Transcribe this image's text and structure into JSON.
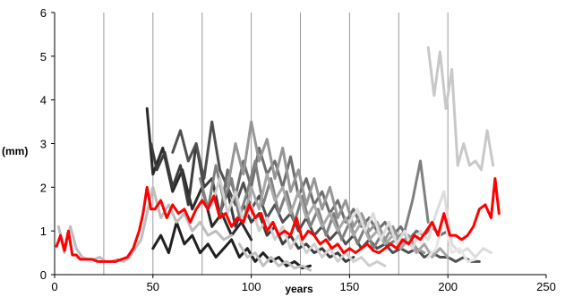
{
  "chart_data": {
    "type": "line",
    "xlabel": "years",
    "ylabel": "(mm)",
    "xlim": [
      0,
      250
    ],
    "ylim": [
      0,
      6
    ],
    "xticks": [
      0,
      50,
      100,
      150,
      200,
      250
    ],
    "yticks": [
      0,
      1,
      2,
      3,
      4,
      5,
      6
    ],
    "vertical_gridlines_x": [
      25,
      50,
      75,
      100,
      125,
      150,
      175,
      200
    ],
    "horizontal_grid": false,
    "series": [
      {
        "color": "#2a2a2a",
        "x": [
          47,
          50,
          55,
          60,
          65,
          70,
          75,
          80,
          85,
          90,
          95,
          100
        ],
        "y": [
          3.8,
          2.3,
          2.9,
          1.9,
          2.4,
          1.5,
          2.0,
          1.1,
          1.4,
          0.9,
          1.2,
          0.8
        ]
      },
      {
        "color": "#3c3c3c",
        "x": [
          49,
          52,
          56,
          60,
          64,
          68,
          72,
          76,
          80,
          84,
          88,
          92,
          96,
          100,
          104,
          108,
          112,
          116,
          120,
          124,
          128,
          132,
          136,
          140,
          144,
          148,
          152
        ],
        "y": [
          3.0,
          2.4,
          2.8,
          2.0,
          2.5,
          1.6,
          3.0,
          2.0,
          2.2,
          1.4,
          1.9,
          1.1,
          1.6,
          1.2,
          1.4,
          0.9,
          1.1,
          0.7,
          0.9,
          0.6,
          0.7,
          0.5,
          0.6,
          0.4,
          0.5,
          0.3,
          0.4
        ]
      },
      {
        "color": "#505050",
        "x": [
          60,
          64,
          68,
          72,
          76,
          80,
          84,
          88,
          92,
          96,
          100,
          104,
          108,
          112,
          116,
          120,
          124,
          128,
          132,
          136,
          140,
          144,
          148,
          152,
          156,
          160,
          164,
          168,
          172,
          176,
          180,
          184,
          188,
          192,
          196,
          200,
          204,
          208,
          212,
          216
        ],
        "y": [
          2.8,
          3.3,
          2.6,
          3.0,
          2.2,
          3.5,
          2.4,
          2.0,
          1.6,
          2.1,
          1.5,
          1.8,
          1.3,
          1.6,
          1.2,
          1.4,
          1.0,
          1.3,
          0.9,
          1.1,
          0.8,
          1.0,
          0.7,
          0.9,
          0.6,
          0.8,
          0.6,
          0.7,
          0.5,
          0.6,
          0.5,
          0.6,
          0.4,
          0.5,
          0.4,
          0.4,
          0.3,
          0.4,
          0.3,
          0.3
        ]
      },
      {
        "color": "#202020",
        "x": [
          50,
          54,
          58,
          62,
          66,
          70,
          74,
          78,
          82,
          86,
          90,
          94,
          98,
          102,
          106,
          110,
          114,
          118,
          122,
          126,
          130
        ],
        "y": [
          0.6,
          0.9,
          0.5,
          1.2,
          0.7,
          0.9,
          0.5,
          0.7,
          0.4,
          0.6,
          0.8,
          0.4,
          0.6,
          0.3,
          0.5,
          0.3,
          0.4,
          0.2,
          0.3,
          0.15,
          0.2
        ]
      },
      {
        "color": "#6e6e6e",
        "x": [
          84,
          88,
          92,
          96,
          100,
          104,
          108,
          112,
          116,
          120,
          124,
          128,
          132,
          136,
          140,
          144,
          148,
          152,
          156,
          160,
          164,
          168,
          172,
          176,
          180,
          184,
          188,
          192,
          196,
          200
        ],
        "y": [
          1.3,
          2.4,
          1.8,
          2.6,
          2.0,
          2.9,
          2.3,
          2.6,
          2.0,
          2.7,
          1.8,
          2.2,
          1.6,
          1.9,
          1.4,
          1.7,
          1.2,
          1.5,
          1.1,
          1.3,
          1.0,
          1.2,
          0.9,
          1.1,
          0.8,
          1.0,
          0.9,
          1.1,
          0.9,
          1.0
        ]
      },
      {
        "color": "#808080",
        "x": [
          74,
          78,
          82,
          86,
          90,
          94,
          98,
          102,
          106,
          110,
          114,
          118,
          122,
          126,
          130,
          134,
          138,
          142,
          146,
          150,
          154,
          158,
          162,
          166,
          170,
          174,
          178,
          182,
          186,
          190
        ],
        "y": [
          2.2,
          1.5,
          2.5,
          1.7,
          2.2,
          1.3,
          1.9,
          2.6,
          1.6,
          2.2,
          1.4,
          1.9,
          1.2,
          1.8,
          1.1,
          1.5,
          0.9,
          1.4,
          0.8,
          1.2,
          0.7,
          1.1,
          0.6,
          0.9,
          0.7,
          0.8,
          1.0,
          1.7,
          2.6,
          1.2
        ]
      },
      {
        "color": "#969696",
        "x": [
          88,
          92,
          96,
          100,
          104,
          108,
          112,
          116,
          120,
          124,
          128,
          132,
          136,
          140,
          144,
          148,
          152,
          156,
          160,
          164,
          168,
          172,
          176,
          180,
          184,
          188
        ],
        "y": [
          2.0,
          3.0,
          2.3,
          3.5,
          2.6,
          3.1,
          2.2,
          2.9,
          1.9,
          2.4,
          1.6,
          2.2,
          1.5,
          2.0,
          1.3,
          1.7,
          1.1,
          1.4,
          1.0,
          1.2,
          0.8,
          1.1,
          0.7,
          0.9,
          0.6,
          0.5
        ]
      },
      {
        "color": "#a8a8a8",
        "x": [
          96,
          100,
          104,
          108,
          112,
          116,
          120,
          124,
          128,
          132,
          136,
          140,
          144,
          148,
          152,
          156,
          160,
          164,
          168,
          172,
          176,
          180,
          184,
          188,
          192,
          196,
          200
        ],
        "y": [
          1.2,
          2.0,
          1.5,
          2.3,
          1.7,
          2.0,
          1.4,
          1.9,
          1.3,
          1.6,
          1.1,
          1.4,
          1.0,
          1.3,
          0.9,
          1.2,
          0.8,
          1.0,
          0.7,
          0.9,
          0.6,
          0.8,
          0.5,
          0.7,
          0.4,
          0.6,
          0.4
        ]
      },
      {
        "color": "#bdbdbd",
        "x": [
          2,
          5,
          8,
          11,
          14,
          17,
          20,
          23,
          26,
          29,
          32,
          35,
          38,
          41,
          44,
          47,
          50,
          54,
          58,
          62,
          66,
          70,
          74,
          78,
          82,
          86,
          90
        ],
        "y": [
          1.1,
          0.5,
          1.1,
          0.6,
          0.4,
          0.35,
          0.35,
          0.4,
          0.3,
          0.3,
          0.35,
          0.3,
          0.4,
          0.6,
          0.8,
          1.4,
          2.0,
          1.3,
          1.6,
          1.2,
          1.4,
          1.0,
          1.2,
          0.9,
          1.0,
          0.8,
          0.9
        ]
      },
      {
        "color": "#c8c8c8",
        "x": [
          190,
          193,
          196,
          199,
          202,
          205,
          208,
          211,
          214,
          217,
          220,
          223
        ],
        "y": [
          5.2,
          4.1,
          5.1,
          3.8,
          4.7,
          2.5,
          3.0,
          2.5,
          2.6,
          2.4,
          3.3,
          2.5
        ]
      },
      {
        "color": "#cfcfcf",
        "x": [
          80,
          84,
          88,
          92,
          96,
          100,
          104,
          108,
          112,
          116,
          120,
          124,
          128,
          132,
          136,
          140,
          144,
          148,
          152,
          156,
          160,
          164,
          168
        ],
        "y": [
          1.6,
          2.2,
          1.4,
          1.9,
          1.2,
          1.6,
          1.0,
          1.3,
          0.8,
          1.1,
          0.6,
          0.9,
          0.5,
          0.7,
          0.4,
          0.6,
          0.3,
          0.5,
          0.3,
          0.4,
          0.2,
          0.3,
          0.2
        ]
      },
      {
        "color": "#dcdcdc",
        "x": [
          150,
          154,
          158,
          162,
          166,
          170,
          174,
          178,
          182,
          186,
          190,
          194,
          198,
          202,
          206,
          210,
          214,
          218,
          222
        ],
        "y": [
          1.2,
          1.5,
          1.0,
          1.4,
          0.8,
          1.2,
          0.7,
          1.0,
          0.6,
          1.0,
          0.8,
          1.4,
          1.9,
          0.7,
          0.5,
          0.6,
          0.4,
          0.6,
          0.5
        ]
      },
      {
        "color": "#e6e6e6",
        "x": [
          190,
          194,
          198,
          202,
          206,
          210,
          214
        ],
        "y": [
          0.4,
          0.6,
          1.3,
          0.5,
          0.6,
          0.3,
          0.35
        ]
      },
      {
        "color": "#c0c0c0",
        "x": [
          94,
          98,
          102,
          106,
          110,
          114,
          118,
          122,
          126,
          130
        ],
        "y": [
          0.7,
          0.4,
          0.5,
          0.2,
          0.4,
          0.2,
          0.3,
          0.15,
          0.2,
          0.1
        ]
      },
      {
        "color": "#ff0000",
        "x": [
          1,
          3,
          5,
          7,
          9,
          11,
          13,
          16,
          19,
          22,
          25,
          28,
          31,
          34,
          37,
          40,
          43,
          45,
          47,
          49,
          51,
          54,
          57,
          60,
          63,
          66,
          69,
          72,
          75,
          78,
          81,
          84,
          87,
          90,
          93,
          96,
          99,
          102,
          105,
          108,
          111,
          114,
          117,
          120,
          123,
          126,
          129,
          132,
          135,
          138,
          141,
          144,
          147,
          150,
          153,
          156,
          159,
          162,
          165,
          168,
          171,
          174,
          177,
          180,
          183,
          186,
          189,
          192,
          195,
          198,
          201,
          204,
          207,
          210,
          213,
          216,
          219,
          222,
          224,
          226
        ],
        "y": [
          0.65,
          0.9,
          0.55,
          1.0,
          0.45,
          0.45,
          0.35,
          0.35,
          0.35,
          0.3,
          0.3,
          0.3,
          0.3,
          0.35,
          0.4,
          0.6,
          1.0,
          1.4,
          2.0,
          1.5,
          1.5,
          1.7,
          1.3,
          1.6,
          1.4,
          1.5,
          1.2,
          1.5,
          1.7,
          1.5,
          1.8,
          1.3,
          1.4,
          1.1,
          1.3,
          1.2,
          1.6,
          1.3,
          1.4,
          1.0,
          1.2,
          0.9,
          1.0,
          0.9,
          1.3,
          0.8,
          1.0,
          0.9,
          0.7,
          0.8,
          0.6,
          0.7,
          0.5,
          0.6,
          0.5,
          0.6,
          0.7,
          0.55,
          0.5,
          0.6,
          0.7,
          0.6,
          0.8,
          0.7,
          0.9,
          0.8,
          1.0,
          1.2,
          0.9,
          1.4,
          0.9,
          0.9,
          0.8,
          0.9,
          1.1,
          1.5,
          1.6,
          1.3,
          2.2,
          1.4
        ]
      }
    ]
  }
}
